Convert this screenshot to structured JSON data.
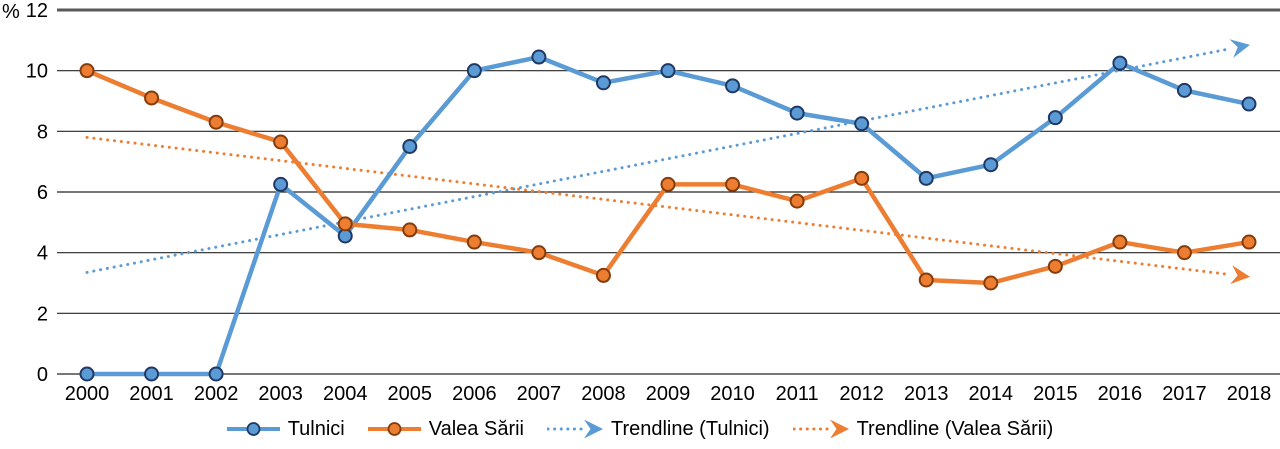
{
  "chart_data": {
    "type": "line",
    "title": "",
    "unit_label": "%",
    "xlabel": "",
    "ylabel": "%",
    "x": [
      "2000",
      "2001",
      "2002",
      "2003",
      "2004",
      "2005",
      "2006",
      "2007",
      "2008",
      "2009",
      "2010",
      "2011",
      "2012",
      "2013",
      "2014",
      "2015",
      "2016",
      "2017",
      "2018"
    ],
    "series": [
      {
        "name": "Tulnici",
        "color": "#5B9BD5",
        "marker_stroke": "#1F3864",
        "values": [
          0,
          0,
          0,
          6.25,
          4.55,
          7.5,
          10,
          10.45,
          9.6,
          10,
          9.5,
          8.6,
          8.25,
          6.45,
          6.9,
          8.45,
          10.25,
          9.35,
          8.9
        ]
      },
      {
        "name": "Valea Sării",
        "color": "#ED7D31",
        "marker_stroke": "#843C0C",
        "values": [
          10,
          9.1,
          8.3,
          7.65,
          4.95,
          4.75,
          4.35,
          4,
          3.25,
          6.25,
          6.25,
          5.7,
          6.45,
          3.1,
          3,
          3.55,
          4.35,
          4,
          4.35
        ]
      }
    ],
    "trendlines": [
      {
        "name": "Trendline (Tulnici)",
        "color": "#5B9BD5",
        "start": 3.35,
        "end": 10.85
      },
      {
        "name": "Trendline (Valea Sării)",
        "color": "#ED7D31",
        "start": 7.8,
        "end": 3.2
      }
    ],
    "ylim": [
      0,
      12
    ],
    "ytick_step": 2,
    "yticks": [
      0,
      2,
      4,
      6,
      8,
      10,
      12
    ],
    "grid": true,
    "legend_position": "bottom",
    "colors": {
      "gridline": "#262626",
      "top_border_line": "#595959",
      "axis_text": "#000000"
    }
  }
}
